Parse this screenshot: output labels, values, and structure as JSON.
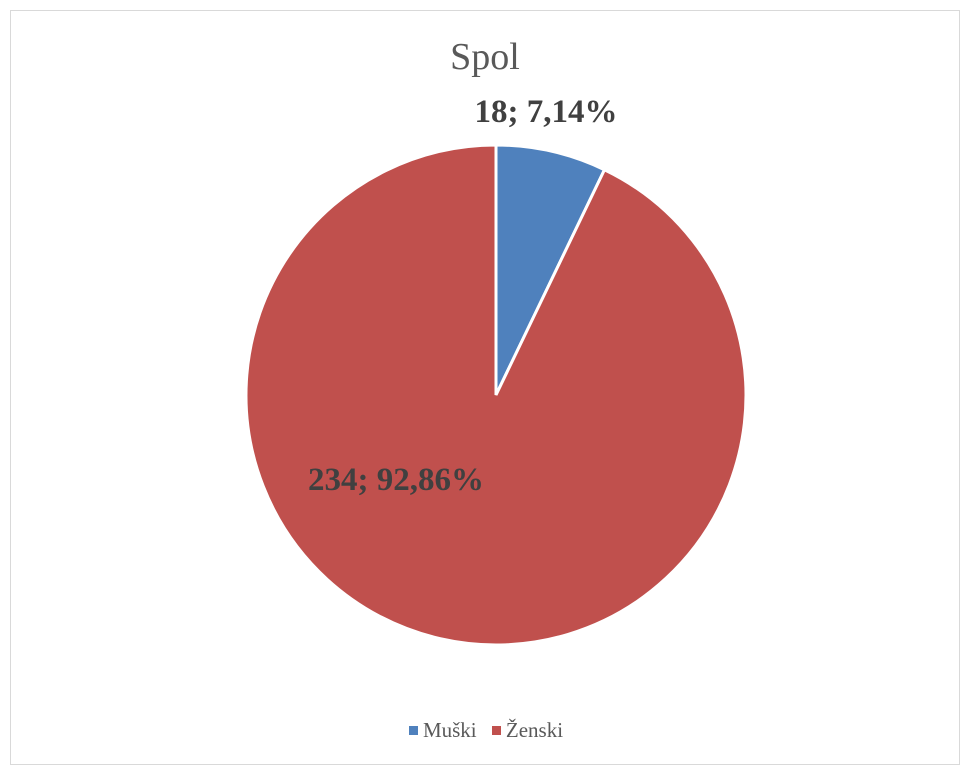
{
  "chart_data": {
    "type": "pie",
    "title": "Spol",
    "slices": [
      {
        "label": "Muški",
        "value": 18,
        "percent": "7,14%",
        "data_label": "18; 7,14%",
        "color": "#4f81bd"
      },
      {
        "label": "Ženski",
        "value": 234,
        "percent": "92,86%",
        "data_label": "234; 92,86%",
        "color": "#c0504d"
      }
    ],
    "legend_position": "bottom"
  }
}
